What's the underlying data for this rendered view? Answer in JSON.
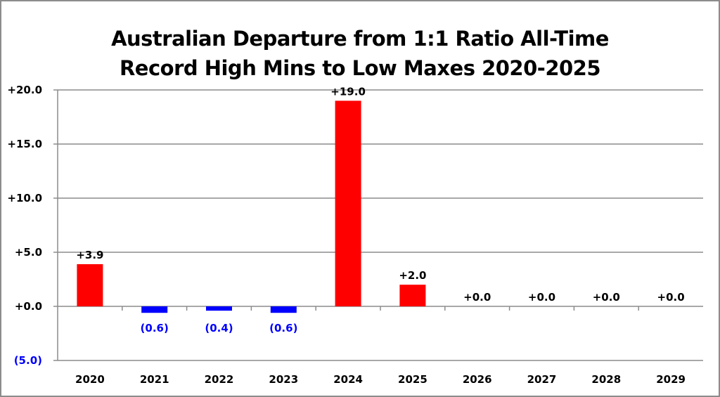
{
  "chart_data": {
    "type": "bar",
    "title": "Australian Departure from 1:1 Ratio All-Time Record High Mins to Low Maxes 2020-2025",
    "title_lines": [
      "Australian Departure from 1:1 Ratio All-Time",
      "Record High Mins to Low Maxes 2020-2025"
    ],
    "xlabel": "",
    "ylabel": "",
    "categories": [
      "2020",
      "2021",
      "2022",
      "2023",
      "2024",
      "2025",
      "2026",
      "2027",
      "2028",
      "2029"
    ],
    "values": [
      3.9,
      -0.6,
      -0.4,
      -0.6,
      19.0,
      2.0,
      0.0,
      0.0,
      0.0,
      0.0
    ],
    "data_labels": [
      "+3.9",
      "(0.6)",
      "(0.4)",
      "(0.6)",
      "+19.0",
      "+2.0",
      "+0.0",
      "+0.0",
      "+0.0",
      "+0.0"
    ],
    "ylim": [
      -5,
      20
    ],
    "yticks": [
      -5,
      0,
      5,
      10,
      15,
      20
    ],
    "ytick_labels": [
      "(5.0)",
      "+0.0",
      "+5.0",
      "+10.0",
      "+15.0",
      "+20.0"
    ],
    "grid": true,
    "legend": "none",
    "colors": {
      "positive": "#ff0000",
      "negative": "#0000ff",
      "positive_text": "#000000",
      "negative_text": "#0000ff",
      "grid": "#8c8c8c"
    }
  }
}
